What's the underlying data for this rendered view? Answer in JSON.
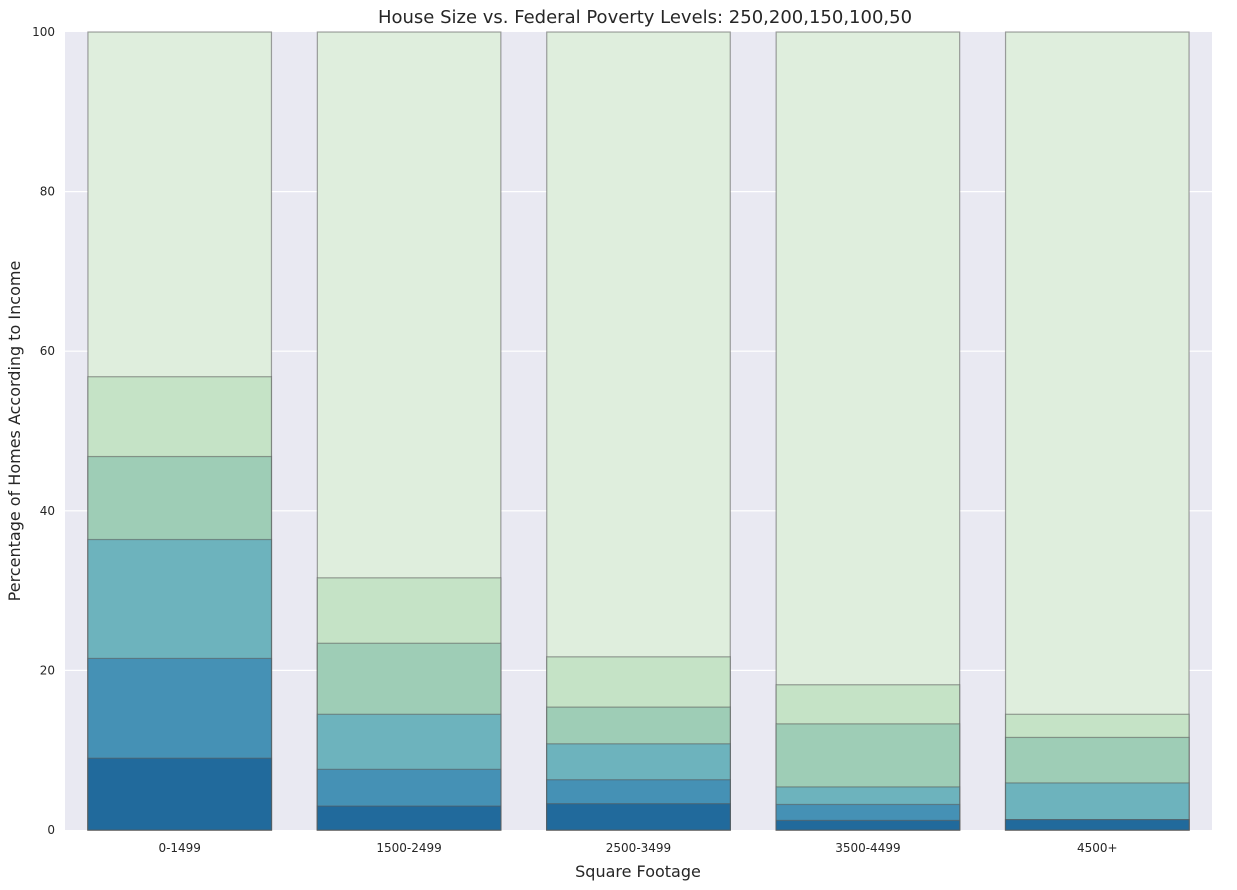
{
  "chart_data": {
    "type": "bar",
    "stacked": true,
    "title": "House Size vs. Federal Poverty Levels: 250,200,150,100,50",
    "xlabel": "Square Footage",
    "ylabel": "Percentage of Homes According to Income",
    "ylim": [
      0,
      100
    ],
    "yticks": [
      0,
      20,
      40,
      60,
      80,
      100
    ],
    "grid": true,
    "legend": "none",
    "categories": [
      "0-1499",
      "1500-2499",
      "2500-3499",
      "3500-4499",
      "4500+"
    ],
    "cumulative_levels": [
      {
        "values": [
          9.0,
          3.0,
          3.3,
          1.2,
          1.3
        ],
        "color": "#216a9c"
      },
      {
        "values": [
          21.5,
          7.6,
          6.3,
          3.2,
          1.3
        ],
        "color": "#4591b5"
      },
      {
        "values": [
          36.4,
          14.5,
          10.8,
          5.4,
          5.9
        ],
        "color": "#6db3bd"
      },
      {
        "values": [
          46.8,
          23.4,
          15.4,
          13.3,
          11.6
        ],
        "color": "#9ecdb6"
      },
      {
        "values": [
          56.8,
          31.6,
          21.7,
          18.2,
          14.5
        ],
        "color": "#c5e3c6"
      },
      {
        "values": [
          100,
          100,
          100,
          100,
          100
        ],
        "color": "#dfeedd"
      }
    ]
  }
}
